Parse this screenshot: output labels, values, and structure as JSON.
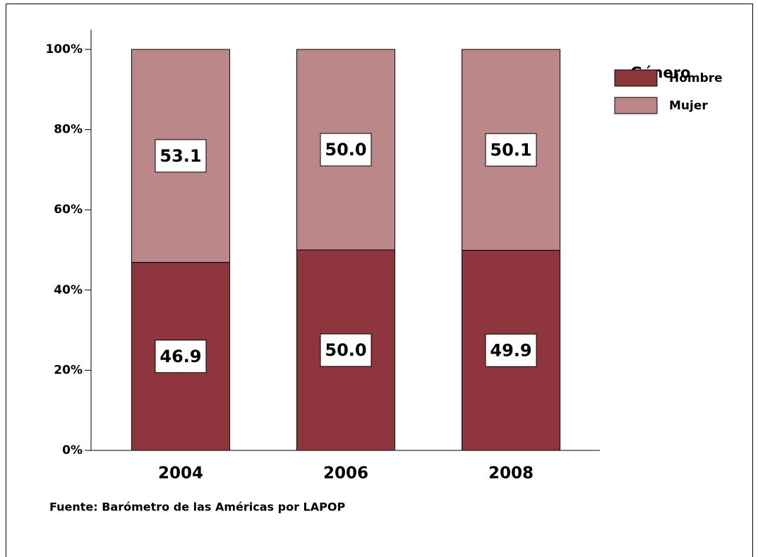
{
  "chart_data": {
    "type": "stacked_bar",
    "categories": [
      "2004",
      "2006",
      "2008"
    ],
    "series": [
      {
        "name": "Hombre",
        "color": "#8e353e",
        "values": [
          46.9,
          50.0,
          49.9
        ],
        "value_labels": [
          "46.9",
          "50.0",
          "49.9"
        ]
      },
      {
        "name": "Mujer",
        "color": "#bc8788",
        "values": [
          53.1,
          50.0,
          50.1
        ],
        "value_labels": [
          "53.1",
          "50.0",
          "50.1"
        ]
      }
    ],
    "legend_title": "Género",
    "legend": "top-right",
    "source": "Fuente: Barómetro de las Américas por LAPOP",
    "ylim": [
      0,
      100
    ],
    "yticks": [
      {
        "value": 0,
        "label": "0%"
      },
      {
        "value": 20,
        "label": "20%"
      },
      {
        "value": 40,
        "label": "40%"
      },
      {
        "value": 60,
        "label": "60%"
      },
      {
        "value": 80,
        "label": "80%"
      },
      {
        "value": 100,
        "label": "100%"
      }
    ]
  }
}
